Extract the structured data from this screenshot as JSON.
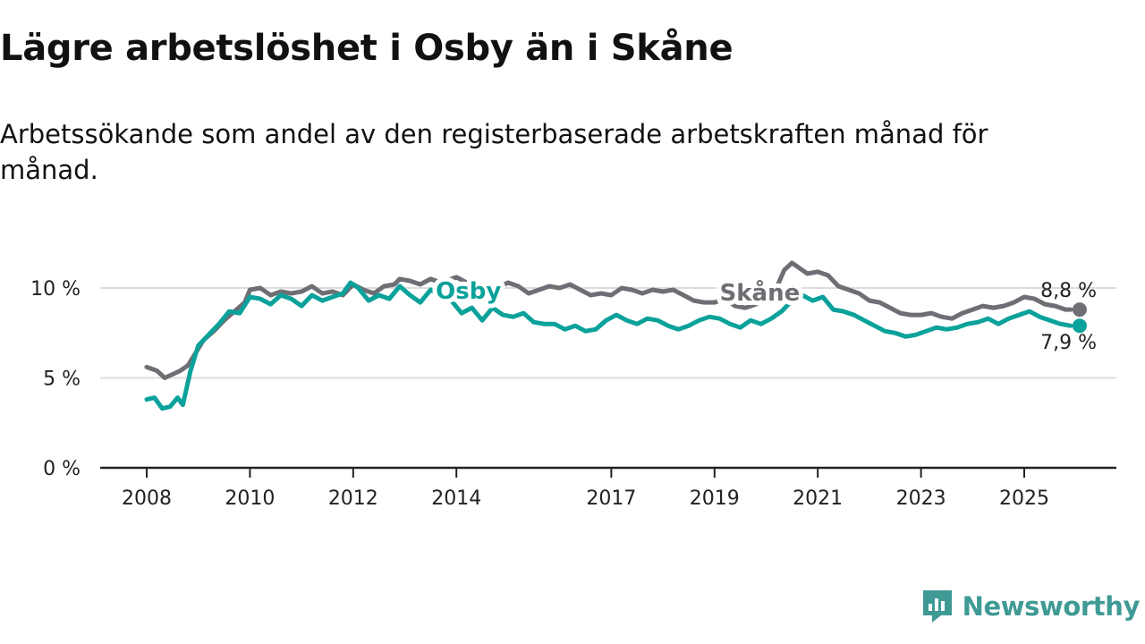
{
  "title": "Lägre arbetslöshet i Osby än i Skåne",
  "subtitle": "Arbetssökande som andel av den registerbaserade arbetskraften månad för månad.",
  "brand": {
    "name": "Newsworthy",
    "icon": "newsworthy-logo-icon"
  },
  "colors": {
    "osby": "#0aa29a",
    "skane": "#6e6e74",
    "grid": "#dddddd",
    "axis": "#222222"
  },
  "chart_data": {
    "type": "line",
    "title": "Lägre arbetslöshet i Osby än i Skåne",
    "xlabel": "",
    "ylabel": "",
    "ylim": [
      0,
      12
    ],
    "xlim": [
      2007.9,
      2026.9
    ],
    "grid": true,
    "y_ticks": [
      {
        "value": 0,
        "label": "0 %"
      },
      {
        "value": 5,
        "label": "5 %"
      },
      {
        "value": 10,
        "label": "10 %"
      }
    ],
    "x_ticks": [
      {
        "value": 2008,
        "label": "2008"
      },
      {
        "value": 2010,
        "label": "2010"
      },
      {
        "value": 2012,
        "label": "2012"
      },
      {
        "value": 2014,
        "label": "2014"
      },
      {
        "value": 2017,
        "label": "2017"
      },
      {
        "value": 2019,
        "label": "2019"
      },
      {
        "value": 2021,
        "label": "2021"
      },
      {
        "value": 2023,
        "label": "2023"
      },
      {
        "value": 2025,
        "label": "2025"
      }
    ],
    "series": [
      {
        "name": "Skåne",
        "label": "Skåne",
        "label_at": [
          2019.1,
          9.8
        ],
        "end_label": "8,8 %",
        "color": "#6e6e74",
        "points": [
          [
            2008.0,
            5.6
          ],
          [
            2008.2,
            5.4
          ],
          [
            2008.35,
            5.0
          ],
          [
            2008.5,
            5.2
          ],
          [
            2008.65,
            5.4
          ],
          [
            2008.8,
            5.7
          ],
          [
            2008.95,
            6.4
          ],
          [
            2009.1,
            7.1
          ],
          [
            2009.3,
            7.6
          ],
          [
            2009.5,
            8.2
          ],
          [
            2009.7,
            8.7
          ],
          [
            2009.9,
            9.2
          ],
          [
            2010.0,
            9.9
          ],
          [
            2010.2,
            10.0
          ],
          [
            2010.4,
            9.6
          ],
          [
            2010.6,
            9.8
          ],
          [
            2010.8,
            9.7
          ],
          [
            2011.0,
            9.8
          ],
          [
            2011.2,
            10.1
          ],
          [
            2011.4,
            9.7
          ],
          [
            2011.6,
            9.8
          ],
          [
            2011.8,
            9.6
          ],
          [
            2012.0,
            10.2
          ],
          [
            2012.2,
            9.9
          ],
          [
            2012.4,
            9.7
          ],
          [
            2012.6,
            10.1
          ],
          [
            2012.8,
            10.2
          ],
          [
            2012.9,
            10.5
          ],
          [
            2013.1,
            10.4
          ],
          [
            2013.3,
            10.2
          ],
          [
            2013.5,
            10.5
          ],
          [
            2013.7,
            10.3
          ],
          [
            2013.9,
            10.5
          ],
          [
            2014.0,
            10.6
          ],
          [
            2014.2,
            10.3
          ],
          [
            2014.4,
            10.2
          ],
          [
            2014.6,
            10.1
          ],
          [
            2014.8,
            10.0
          ],
          [
            2015.0,
            10.3
          ],
          [
            2015.2,
            10.1
          ],
          [
            2015.4,
            9.7
          ],
          [
            2015.6,
            9.9
          ],
          [
            2015.8,
            10.1
          ],
          [
            2016.0,
            10.0
          ],
          [
            2016.2,
            10.2
          ],
          [
            2016.4,
            9.9
          ],
          [
            2016.6,
            9.6
          ],
          [
            2016.8,
            9.7
          ],
          [
            2017.0,
            9.6
          ],
          [
            2017.2,
            10.0
          ],
          [
            2017.4,
            9.9
          ],
          [
            2017.6,
            9.7
          ],
          [
            2017.8,
            9.9
          ],
          [
            2018.0,
            9.8
          ],
          [
            2018.2,
            9.9
          ],
          [
            2018.4,
            9.6
          ],
          [
            2018.6,
            9.3
          ],
          [
            2018.8,
            9.2
          ],
          [
            2019.0,
            9.2
          ],
          [
            2019.2,
            9.4
          ],
          [
            2019.4,
            9.0
          ],
          [
            2019.6,
            8.9
          ],
          [
            2019.8,
            9.1
          ],
          [
            2020.0,
            9.4
          ],
          [
            2020.2,
            10.0
          ],
          [
            2020.35,
            11.0
          ],
          [
            2020.5,
            11.4
          ],
          [
            2020.65,
            11.1
          ],
          [
            2020.8,
            10.8
          ],
          [
            2021.0,
            10.9
          ],
          [
            2021.2,
            10.7
          ],
          [
            2021.4,
            10.1
          ],
          [
            2021.6,
            9.9
          ],
          [
            2021.8,
            9.7
          ],
          [
            2022.0,
            9.3
          ],
          [
            2022.2,
            9.2
          ],
          [
            2022.4,
            8.9
          ],
          [
            2022.6,
            8.6
          ],
          [
            2022.8,
            8.5
          ],
          [
            2023.0,
            8.5
          ],
          [
            2023.2,
            8.6
          ],
          [
            2023.4,
            8.4
          ],
          [
            2023.6,
            8.3
          ],
          [
            2023.8,
            8.6
          ],
          [
            2024.0,
            8.8
          ],
          [
            2024.2,
            9.0
          ],
          [
            2024.4,
            8.9
          ],
          [
            2024.6,
            9.0
          ],
          [
            2024.8,
            9.2
          ],
          [
            2025.0,
            9.5
          ],
          [
            2025.2,
            9.4
          ],
          [
            2025.4,
            9.1
          ],
          [
            2025.6,
            9.0
          ],
          [
            2025.8,
            8.8
          ],
          [
            2025.9,
            8.8
          ]
        ]
      },
      {
        "name": "Osby",
        "label": "Osby",
        "label_at": [
          2013.6,
          9.9
        ],
        "end_label": "7,9 %",
        "color": "#0aa29a",
        "points": [
          [
            2008.0,
            3.8
          ],
          [
            2008.15,
            3.9
          ],
          [
            2008.3,
            3.3
          ],
          [
            2008.45,
            3.4
          ],
          [
            2008.6,
            3.9
          ],
          [
            2008.7,
            3.5
          ],
          [
            2008.85,
            5.4
          ],
          [
            2009.0,
            6.8
          ],
          [
            2009.2,
            7.4
          ],
          [
            2009.4,
            8.0
          ],
          [
            2009.6,
            8.7
          ],
          [
            2009.8,
            8.6
          ],
          [
            2010.0,
            9.5
          ],
          [
            2010.2,
            9.4
          ],
          [
            2010.4,
            9.1
          ],
          [
            2010.6,
            9.6
          ],
          [
            2010.8,
            9.4
          ],
          [
            2011.0,
            9.0
          ],
          [
            2011.2,
            9.6
          ],
          [
            2011.4,
            9.3
          ],
          [
            2011.6,
            9.5
          ],
          [
            2011.8,
            9.7
          ],
          [
            2011.95,
            10.3
          ],
          [
            2012.1,
            10.0
          ],
          [
            2012.3,
            9.3
          ],
          [
            2012.5,
            9.6
          ],
          [
            2012.7,
            9.4
          ],
          [
            2012.9,
            10.1
          ],
          [
            2013.1,
            9.6
          ],
          [
            2013.3,
            9.2
          ],
          [
            2013.5,
            9.9
          ],
          [
            2013.7,
            9.6
          ],
          [
            2013.9,
            9.3
          ],
          [
            2014.1,
            8.6
          ],
          [
            2014.3,
            8.9
          ],
          [
            2014.5,
            8.2
          ],
          [
            2014.7,
            8.9
          ],
          [
            2014.9,
            8.5
          ],
          [
            2015.1,
            8.4
          ],
          [
            2015.3,
            8.6
          ],
          [
            2015.5,
            8.1
          ],
          [
            2015.7,
            8.0
          ],
          [
            2015.9,
            8.0
          ],
          [
            2016.1,
            7.7
          ],
          [
            2016.3,
            7.9
          ],
          [
            2016.5,
            7.6
          ],
          [
            2016.7,
            7.7
          ],
          [
            2016.9,
            8.2
          ],
          [
            2017.1,
            8.5
          ],
          [
            2017.3,
            8.2
          ],
          [
            2017.5,
            8.0
          ],
          [
            2017.7,
            8.3
          ],
          [
            2017.9,
            8.2
          ],
          [
            2018.1,
            7.9
          ],
          [
            2018.3,
            7.7
          ],
          [
            2018.5,
            7.9
          ],
          [
            2018.7,
            8.2
          ],
          [
            2018.9,
            8.4
          ],
          [
            2019.1,
            8.3
          ],
          [
            2019.3,
            8.0
          ],
          [
            2019.5,
            7.8
          ],
          [
            2019.7,
            8.2
          ],
          [
            2019.9,
            8.0
          ],
          [
            2020.1,
            8.3
          ],
          [
            2020.3,
            8.7
          ],
          [
            2020.5,
            9.3
          ],
          [
            2020.7,
            9.6
          ],
          [
            2020.9,
            9.3
          ],
          [
            2021.1,
            9.5
          ],
          [
            2021.3,
            8.8
          ],
          [
            2021.5,
            8.7
          ],
          [
            2021.7,
            8.5
          ],
          [
            2021.9,
            8.2
          ],
          [
            2022.1,
            7.9
          ],
          [
            2022.3,
            7.6
          ],
          [
            2022.5,
            7.5
          ],
          [
            2022.7,
            7.3
          ],
          [
            2022.9,
            7.4
          ],
          [
            2023.1,
            7.6
          ],
          [
            2023.3,
            7.8
          ],
          [
            2023.5,
            7.7
          ],
          [
            2023.7,
            7.8
          ],
          [
            2023.9,
            8.0
          ],
          [
            2024.1,
            8.1
          ],
          [
            2024.3,
            8.3
          ],
          [
            2024.5,
            8.0
          ],
          [
            2024.7,
            8.3
          ],
          [
            2024.9,
            8.5
          ],
          [
            2025.1,
            8.7
          ],
          [
            2025.3,
            8.4
          ],
          [
            2025.5,
            8.2
          ],
          [
            2025.7,
            8.0
          ],
          [
            2025.9,
            7.9
          ]
        ]
      }
    ]
  }
}
